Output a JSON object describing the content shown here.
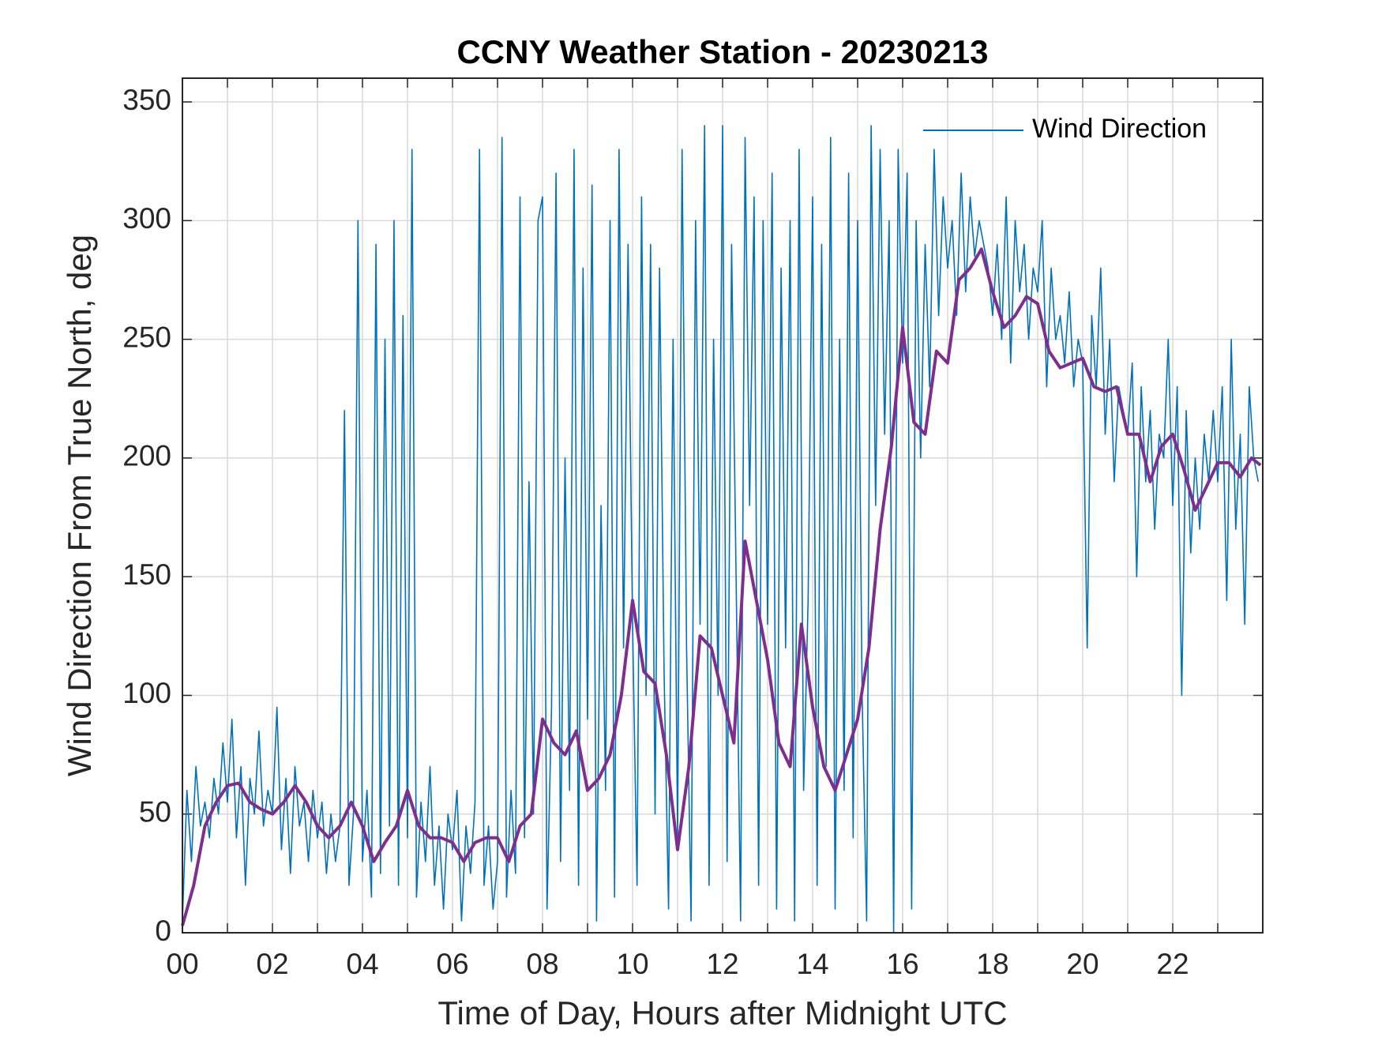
{
  "chart_data": {
    "type": "line",
    "title": "CCNY Weather Station - 20230213",
    "xlabel": "Time of Day, Hours after Midnight UTC",
    "ylabel": "Wind Direction From True North, deg",
    "xlim": [
      0,
      24
    ],
    "ylim": [
      0,
      360
    ],
    "xticks": [
      {
        "value": 0,
        "label": "00"
      },
      {
        "value": 2,
        "label": "02"
      },
      {
        "value": 4,
        "label": "04"
      },
      {
        "value": 6,
        "label": "06"
      },
      {
        "value": 8,
        "label": "08"
      },
      {
        "value": 10,
        "label": "10"
      },
      {
        "value": 12,
        "label": "12"
      },
      {
        "value": 14,
        "label": "14"
      },
      {
        "value": 16,
        "label": "16"
      },
      {
        "value": 18,
        "label": "18"
      },
      {
        "value": 20,
        "label": "20"
      },
      {
        "value": 22,
        "label": "22"
      }
    ],
    "xminorticks": [
      1,
      3,
      5,
      7,
      9,
      11,
      13,
      15,
      17,
      19,
      21,
      23
    ],
    "yticks": [
      0,
      50,
      100,
      150,
      200,
      250,
      300,
      350
    ],
    "grid": true,
    "legend": "upper right",
    "series": [
      {
        "name": "Wind Direction",
        "color": "#0072BD",
        "width": 1.6,
        "x": [
          0,
          0.1,
          0.2,
          0.3,
          0.4,
          0.5,
          0.6,
          0.7,
          0.8,
          0.9,
          1,
          1.1,
          1.2,
          1.3,
          1.4,
          1.5,
          1.6,
          1.7,
          1.8,
          1.9,
          2,
          2.1,
          2.2,
          2.3,
          2.4,
          2.5,
          2.6,
          2.7,
          2.8,
          2.9,
          3,
          3.1,
          3.2,
          3.3,
          3.4,
          3.5,
          3.6,
          3.7,
          3.8,
          3.9,
          4,
          4.1,
          4.2,
          4.3,
          4.4,
          4.5,
          4.6,
          4.7,
          4.8,
          4.9,
          5,
          5.1,
          5.2,
          5.3,
          5.4,
          5.5,
          5.6,
          5.7,
          5.8,
          5.9,
          6,
          6.1,
          6.2,
          6.3,
          6.4,
          6.5,
          6.6,
          6.7,
          6.8,
          6.9,
          7,
          7.1,
          7.2,
          7.3,
          7.4,
          7.5,
          7.6,
          7.7,
          7.8,
          7.9,
          8,
          8.1,
          8.2,
          8.3,
          8.4,
          8.5,
          8.6,
          8.7,
          8.8,
          8.9,
          9,
          9.1,
          9.2,
          9.3,
          9.4,
          9.5,
          9.6,
          9.7,
          9.8,
          9.9,
          10,
          10.1,
          10.2,
          10.3,
          10.4,
          10.5,
          10.6,
          10.7,
          10.8,
          10.9,
          11,
          11.1,
          11.2,
          11.3,
          11.4,
          11.5,
          11.6,
          11.7,
          11.8,
          11.9,
          12,
          12.1,
          12.2,
          12.3,
          12.4,
          12.5,
          12.6,
          12.7,
          12.8,
          12.9,
          13,
          13.1,
          13.2,
          13.3,
          13.4,
          13.5,
          13.6,
          13.7,
          13.8,
          13.9,
          14,
          14.1,
          14.2,
          14.3,
          14.4,
          14.5,
          14.6,
          14.7,
          14.8,
          14.9,
          15,
          15.1,
          15.2,
          15.3,
          15.4,
          15.5,
          15.6,
          15.7,
          15.8,
          15.9,
          16,
          16.1,
          16.2,
          16.3,
          16.4,
          16.5,
          16.6,
          16.7,
          16.8,
          16.9,
          17,
          17.1,
          17.2,
          17.3,
          17.4,
          17.5,
          17.6,
          17.7,
          17.8,
          17.9,
          18,
          18.1,
          18.2,
          18.3,
          18.4,
          18.5,
          18.6,
          18.7,
          18.8,
          18.9,
          19,
          19.1,
          19.2,
          19.3,
          19.4,
          19.5,
          19.6,
          19.7,
          19.8,
          19.9,
          20,
          20.1,
          20.2,
          20.3,
          20.4,
          20.5,
          20.6,
          20.7,
          20.8,
          20.9,
          21,
          21.1,
          21.2,
          21.3,
          21.4,
          21.5,
          21.6,
          21.7,
          21.8,
          21.9,
          22,
          22.1,
          22.2,
          22.3,
          22.4,
          22.5,
          22.6,
          22.7,
          22.8,
          22.9,
          23,
          23.1,
          23.2,
          23.3,
          23.4,
          23.5,
          23.6,
          23.7,
          23.8,
          23.9
        ],
        "values": [
          5,
          60,
          30,
          70,
          45,
          55,
          40,
          65,
          50,
          80,
          55,
          90,
          40,
          70,
          20,
          65,
          50,
          85,
          45,
          60,
          50,
          95,
          35,
          65,
          25,
          70,
          45,
          55,
          30,
          60,
          40,
          55,
          25,
          50,
          30,
          45,
          220,
          20,
          50,
          300,
          30,
          60,
          15,
          290,
          25,
          250,
          45,
          300,
          20,
          260,
          40,
          330,
          15,
          55,
          30,
          70,
          20,
          45,
          10,
          50,
          35,
          60,
          5,
          45,
          25,
          55,
          330,
          20,
          45,
          10,
          30,
          335,
          15,
          60,
          25,
          310,
          40,
          190,
          50,
          300,
          310,
          10,
          95,
          320,
          30,
          200,
          60,
          330,
          20,
          280,
          90,
          315,
          5,
          180,
          60,
          300,
          15,
          330,
          120,
          290,
          130,
          20,
          310,
          100,
          290,
          50,
          280,
          110,
          10,
          250,
          40,
          330,
          120,
          5,
          300,
          130,
          340,
          20,
          250,
          100,
          340,
          30,
          290,
          150,
          5,
          335,
          180,
          310,
          20,
          300,
          130,
          320,
          10,
          280,
          120,
          300,
          5,
          330,
          60,
          140,
          310,
          20,
          290,
          70,
          335,
          10,
          250,
          60,
          320,
          40,
          300,
          100,
          5,
          340,
          180,
          330,
          210,
          300,
          0,
          330,
          240,
          320,
          10,
          300,
          200,
          290,
          230,
          330,
          260,
          310,
          280,
          300,
          260,
          320,
          270,
          310,
          285,
          300,
          290,
          280,
          260,
          290,
          250,
          310,
          240,
          300,
          270,
          290,
          250,
          280,
          270,
          300,
          230,
          280,
          250,
          260,
          240,
          270,
          230,
          250,
          240,
          120,
          260,
          230,
          280,
          210,
          250,
          190,
          230,
          220,
          210,
          240,
          150,
          230,
          190,
          220,
          170,
          210,
          200,
          250,
          180,
          230,
          100,
          220,
          160,
          200,
          170,
          210,
          190,
          220,
          190,
          230,
          140,
          250,
          170,
          210,
          130,
          230,
          200,
          190
        ]
      },
      {
        "color": "#7E2F8E",
        "width": 4,
        "x": [
          0,
          0.25,
          0.5,
          0.75,
          1,
          1.25,
          1.5,
          1.75,
          2,
          2.25,
          2.5,
          2.75,
          3,
          3.25,
          3.5,
          3.75,
          4,
          4.25,
          4.5,
          4.75,
          5,
          5.25,
          5.5,
          5.75,
          6,
          6.25,
          6.5,
          6.75,
          7,
          7.25,
          7.5,
          7.75,
          8,
          8.25,
          8.5,
          8.75,
          9,
          9.25,
          9.5,
          9.75,
          10,
          10.25,
          10.5,
          10.75,
          11,
          11.25,
          11.5,
          11.75,
          12,
          12.25,
          12.5,
          12.75,
          13,
          13.25,
          13.5,
          13.75,
          14,
          14.25,
          14.5,
          14.75,
          15,
          15.25,
          15.5,
          15.75,
          16,
          16.25,
          16.5,
          16.75,
          17,
          17.25,
          17.5,
          17.75,
          18,
          18.25,
          18.5,
          18.75,
          19,
          19.25,
          19.5,
          19.75,
          20,
          20.25,
          20.5,
          20.75,
          21,
          21.25,
          21.5,
          21.75,
          22,
          22.25,
          22.5,
          22.75,
          23,
          23.25,
          23.5,
          23.75,
          23.95
        ],
        "values": [
          3,
          20,
          45,
          55,
          62,
          63,
          55,
          52,
          50,
          55,
          62,
          55,
          45,
          40,
          45,
          55,
          45,
          30,
          38,
          45,
          60,
          45,
          40,
          40,
          38,
          30,
          38,
          40,
          40,
          30,
          45,
          50,
          90,
          80,
          75,
          85,
          60,
          65,
          75,
          100,
          140,
          110,
          105,
          75,
          35,
          70,
          125,
          120,
          100,
          80,
          165,
          140,
          115,
          80,
          70,
          130,
          95,
          70,
          60,
          75,
          90,
          120,
          170,
          205,
          255,
          215,
          210,
          245,
          240,
          275,
          280,
          288,
          270,
          255,
          260,
          268,
          265,
          245,
          238,
          240,
          242,
          230,
          228,
          230,
          210,
          210,
          190,
          205,
          210,
          195,
          178,
          188,
          198,
          198,
          192,
          200,
          197
        ]
      }
    ]
  }
}
